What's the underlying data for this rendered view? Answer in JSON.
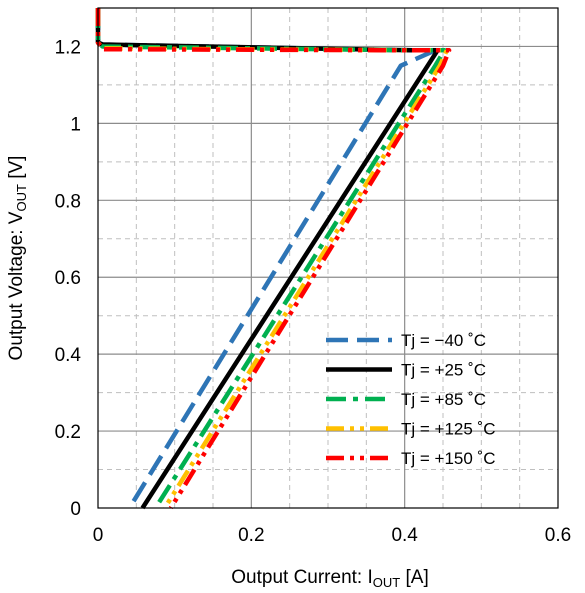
{
  "chart_data": {
    "type": "line",
    "title": "",
    "xlabel": {
      "main": "Output Current: I",
      "sub": "OUT",
      "unit": " [A]"
    },
    "ylabel": {
      "main": "Output Voltage: V",
      "sub": "OUT",
      "unit": " [V]"
    },
    "xlim": [
      0,
      0.6
    ],
    "ylim": [
      0,
      1.3
    ],
    "x_ticks": [
      "0",
      "0.2",
      "0.4",
      "0.6"
    ],
    "y_ticks": [
      "0",
      "0.2",
      "0.4",
      "0.6",
      "0.8",
      "1",
      "1.2"
    ],
    "grid": {
      "major": true,
      "minor_dashed": true
    },
    "legend_position": "lower-right",
    "series": [
      {
        "name": "Tj = −40 ˚C",
        "color": "#2E75B6",
        "style": "dash",
        "x": [
          0.0,
          0.0,
          0.006,
          0.41,
          0.44,
          0.395,
          0.041
        ],
        "y": [
          1.3,
          1.21,
          1.205,
          1.19,
          1.19,
          1.15,
          0.0
        ]
      },
      {
        "name": "Tj = +25 ˚C",
        "color": "#000000",
        "style": "solid",
        "x": [
          0.0,
          0.0,
          0.006,
          0.41,
          0.443,
          0.43,
          0.058
        ],
        "y": [
          1.3,
          1.21,
          1.205,
          1.19,
          1.19,
          1.15,
          0.0
        ]
      },
      {
        "name": "Tj = +85 ˚C",
        "color": "#00B050",
        "style": "dashdot",
        "x": [
          0.0,
          0.0,
          0.006,
          0.41,
          0.452,
          0.44,
          0.075
        ],
        "y": [
          1.3,
          1.21,
          1.2,
          1.19,
          1.19,
          1.15,
          0.0
        ]
      },
      {
        "name": "Tj = +125 ˚C",
        "color": "#FFC000",
        "style": "dashdotdot",
        "x": [
          0.0,
          0.0,
          0.006,
          0.41,
          0.455,
          0.446,
          0.087
        ],
        "y": [
          1.3,
          1.21,
          1.195,
          1.19,
          1.19,
          1.15,
          0.0
        ]
      },
      {
        "name": "Tj = +150 ˚C",
        "color": "#FF0000",
        "style": "dashdotdot",
        "x": [
          0.0,
          0.0,
          0.006,
          0.41,
          0.458,
          0.45,
          0.095
        ],
        "y": [
          1.3,
          1.21,
          1.193,
          1.19,
          1.19,
          1.15,
          0.0
        ]
      }
    ]
  }
}
